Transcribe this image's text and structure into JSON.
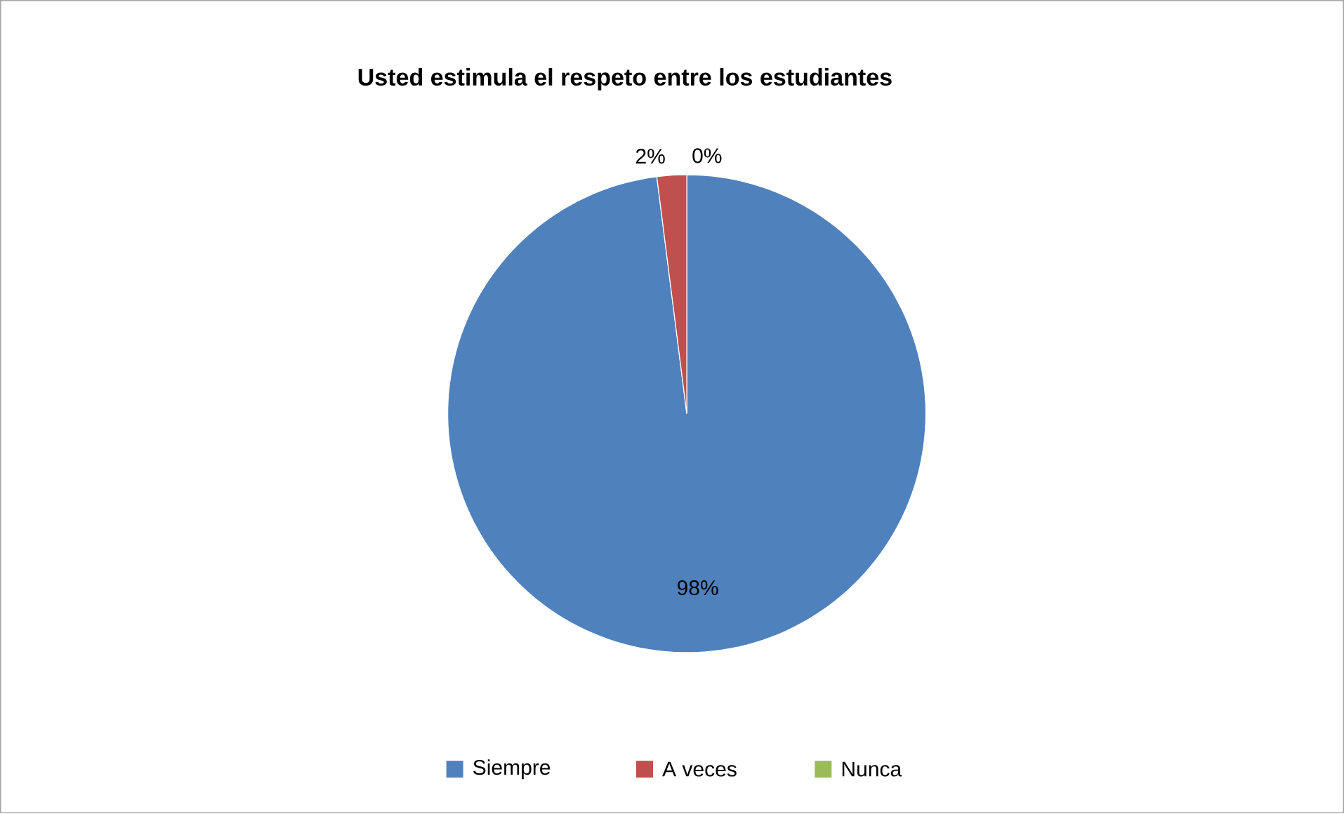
{
  "chart_data": {
    "type": "pie",
    "title": "Usted estimula el respeto entre los estudiantes",
    "categories": [
      "Siempre",
      "A veces",
      "Nunca"
    ],
    "values": [
      98,
      2,
      0
    ],
    "colors": [
      "#4f81bd",
      "#c0504d",
      "#9bbb59"
    ],
    "value_labels": [
      "98%",
      "2%",
      "0%"
    ],
    "legend": "bottom"
  }
}
